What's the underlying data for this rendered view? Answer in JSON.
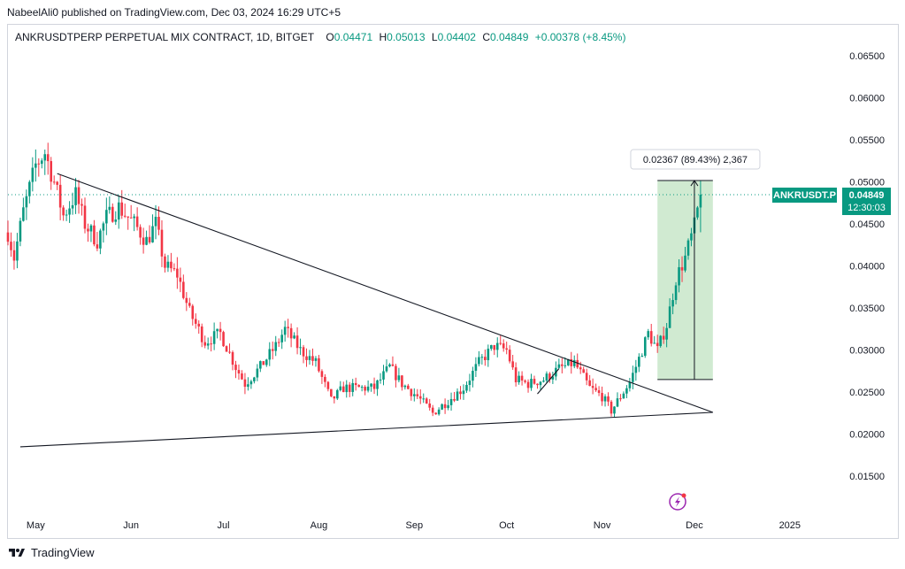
{
  "header": {
    "published": "NabeelAli0 published on TradingView.com, Dec 03, 2024 16:29 UTC+5"
  },
  "legend": {
    "symbol": "ANKRUSDTPERP PERPETUAL MIX CONTRACT, 1D, BITGET",
    "o_label": "O",
    "o_value": "0.04471",
    "h_label": "H",
    "h_value": "0.05013",
    "l_label": "L",
    "l_value": "0.04402",
    "c_label": "C",
    "c_value": "0.04849",
    "change": "+0.00378 (+8.45%)"
  },
  "price_tag": {
    "symbol": "ANKRUSDT.P",
    "price": "0.04849",
    "countdown": "12:30:03"
  },
  "measure": {
    "label": "0.02367 (89.43%) 2,367",
    "from_price": 0.0265,
    "to_price": 0.05017
  },
  "footer": {
    "brand": "TradingView"
  },
  "colors": {
    "up": "#089981",
    "down": "#f23645",
    "measure_fill": "#c8e6c9",
    "price_line": "#089981"
  },
  "chart_data": {
    "type": "candlestick",
    "title": "ANKRUSDTPERP PERPETUAL MIX CONTRACT, 1D, BITGET",
    "y_ticks": [
      "0.06500",
      "0.06000",
      "0.05500",
      "0.05000",
      "0.04500",
      "0.04000",
      "0.03500",
      "0.03000",
      "0.02500",
      "0.02000",
      "0.01500"
    ],
    "x_ticks": [
      "May",
      "Jun",
      "Jul",
      "Aug",
      "Sep",
      "Oct",
      "Nov",
      "Dec",
      "2025"
    ],
    "ylim": [
      0.0106,
      0.0687
    ],
    "xlim": [
      "2024-04-22",
      "2025-01-16"
    ],
    "last_price": 0.04849,
    "anchors": [
      {
        "date": "2024-04-22",
        "close": 0.044
      },
      {
        "date": "2024-04-24",
        "close": 0.041
      },
      {
        "date": "2024-04-27",
        "close": 0.0465
      },
      {
        "date": "2024-05-01",
        "close": 0.052
      },
      {
        "date": "2024-05-04",
        "close": 0.0535
      },
      {
        "date": "2024-05-07",
        "close": 0.05
      },
      {
        "date": "2024-05-10",
        "close": 0.046
      },
      {
        "date": "2024-05-14",
        "close": 0.0485
      },
      {
        "date": "2024-05-17",
        "close": 0.045
      },
      {
        "date": "2024-05-21",
        "close": 0.043
      },
      {
        "date": "2024-05-24",
        "close": 0.0458
      },
      {
        "date": "2024-05-28",
        "close": 0.047
      },
      {
        "date": "2024-06-02",
        "close": 0.045
      },
      {
        "date": "2024-06-06",
        "close": 0.043
      },
      {
        "date": "2024-06-09",
        "close": 0.045
      },
      {
        "date": "2024-06-12",
        "close": 0.04
      },
      {
        "date": "2024-06-16",
        "close": 0.039
      },
      {
        "date": "2024-06-20",
        "close": 0.0345
      },
      {
        "date": "2024-06-25",
        "close": 0.031
      },
      {
        "date": "2024-06-30",
        "close": 0.032
      },
      {
        "date": "2024-07-05",
        "close": 0.028
      },
      {
        "date": "2024-07-08",
        "close": 0.026
      },
      {
        "date": "2024-07-13",
        "close": 0.028
      },
      {
        "date": "2024-07-18",
        "close": 0.0305
      },
      {
        "date": "2024-07-21",
        "close": 0.0325
      },
      {
        "date": "2024-07-26",
        "close": 0.03
      },
      {
        "date": "2024-07-31",
        "close": 0.0285
      },
      {
        "date": "2024-08-05",
        "close": 0.024
      },
      {
        "date": "2024-08-09",
        "close": 0.0255
      },
      {
        "date": "2024-08-14",
        "close": 0.0255
      },
      {
        "date": "2024-08-19",
        "close": 0.0255
      },
      {
        "date": "2024-08-24",
        "close": 0.028
      },
      {
        "date": "2024-08-28",
        "close": 0.026
      },
      {
        "date": "2024-09-02",
        "close": 0.0245
      },
      {
        "date": "2024-09-07",
        "close": 0.0225
      },
      {
        "date": "2024-09-12",
        "close": 0.024
      },
      {
        "date": "2024-09-17",
        "close": 0.0255
      },
      {
        "date": "2024-09-22",
        "close": 0.0285
      },
      {
        "date": "2024-09-27",
        "close": 0.0305
      },
      {
        "date": "2024-10-01",
        "close": 0.03
      },
      {
        "date": "2024-10-04",
        "close": 0.0265
      },
      {
        "date": "2024-10-08",
        "close": 0.026
      },
      {
        "date": "2024-10-13",
        "close": 0.0265
      },
      {
        "date": "2024-10-18",
        "close": 0.0278
      },
      {
        "date": "2024-10-23",
        "close": 0.0285
      },
      {
        "date": "2024-10-28",
        "close": 0.0255
      },
      {
        "date": "2024-11-01",
        "close": 0.0245
      },
      {
        "date": "2024-11-04",
        "close": 0.0228
      },
      {
        "date": "2024-11-07",
        "close": 0.0245
      },
      {
        "date": "2024-11-10",
        "close": 0.0262
      },
      {
        "date": "2024-11-13",
        "close": 0.029
      },
      {
        "date": "2024-11-16",
        "close": 0.032
      },
      {
        "date": "2024-11-19",
        "close": 0.03
      },
      {
        "date": "2024-11-22",
        "close": 0.033
      },
      {
        "date": "2024-11-25",
        "close": 0.0385
      },
      {
        "date": "2024-11-28",
        "close": 0.041
      },
      {
        "date": "2024-12-01",
        "close": 0.0447
      },
      {
        "date": "2024-12-03",
        "close": 0.04849
      }
    ],
    "drawings": [
      {
        "name": "descending-trendline",
        "from": {
          "date": "2024-05-08",
          "price": 0.051
        },
        "to": {
          "date": "2024-12-07",
          "price": 0.0226
        }
      },
      {
        "name": "ascending-trendline",
        "from": {
          "date": "2024-04-26",
          "price": 0.0185
        },
        "to": {
          "date": "2024-12-07",
          "price": 0.0226
        }
      },
      {
        "name": "small-arrow",
        "from": {
          "date": "2024-10-11",
          "price": 0.0248
        },
        "to": {
          "date": "2024-10-18",
          "price": 0.0278
        }
      }
    ],
    "measure_range": {
      "from_date": "2024-11-19",
      "to_date": "2024-12-07",
      "bottom": 0.0265,
      "top": 0.05017,
      "stem_date": "2024-12-01"
    }
  }
}
